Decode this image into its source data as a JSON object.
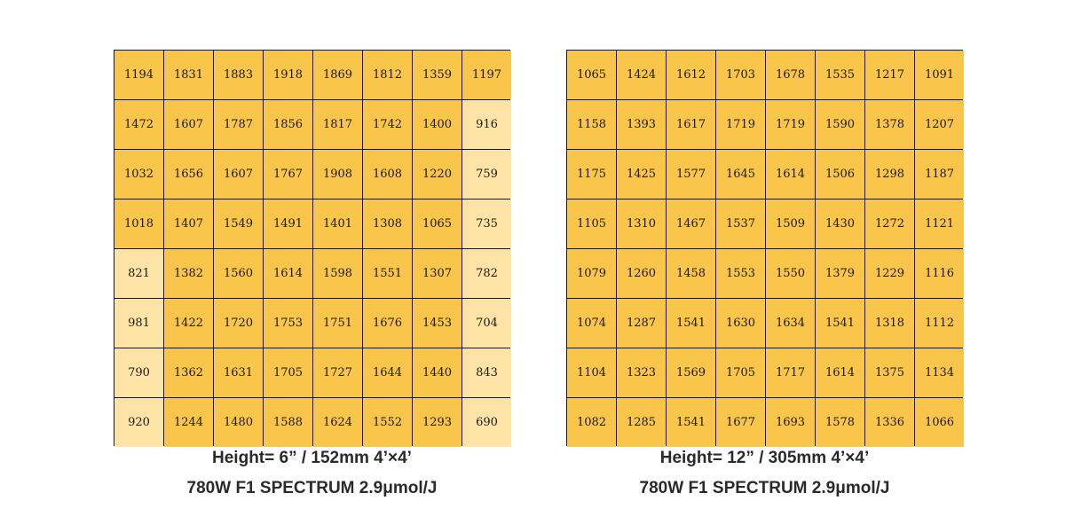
{
  "colors": {
    "high": "#f9c54b",
    "low": "#fde4a6",
    "grid_line": "#1a1a1a",
    "text": "#1a1a1a"
  },
  "chart_data": [
    {
      "type": "heatmap",
      "title": "",
      "caption_line1": "Height= 6” / 152mm  4’×4’",
      "caption_line2": "780W F1 SPECTRUM 2.9μmol/J",
      "rows": [
        [
          1194,
          1831,
          1883,
          1918,
          1869,
          1812,
          1359,
          1197
        ],
        [
          1472,
          1607,
          1787,
          1856,
          1817,
          1742,
          1400,
          916
        ],
        [
          1032,
          1656,
          1607,
          1767,
          1908,
          1608,
          1220,
          759
        ],
        [
          1018,
          1407,
          1549,
          1491,
          1401,
          1308,
          1065,
          735
        ],
        [
          821,
          1382,
          1560,
          1614,
          1598,
          1551,
          1307,
          782
        ],
        [
          981,
          1422,
          1720,
          1753,
          1751,
          1676,
          1453,
          704
        ],
        [
          790,
          1362,
          1631,
          1705,
          1727,
          1644,
          1440,
          843
        ],
        [
          920,
          1244,
          1480,
          1588,
          1624,
          1552,
          1293,
          690
        ]
      ],
      "light_cells": [
        [
          1,
          7
        ],
        [
          2,
          7
        ],
        [
          3,
          7
        ],
        [
          4,
          0
        ],
        [
          4,
          7
        ],
        [
          5,
          0
        ],
        [
          5,
          7
        ],
        [
          6,
          0
        ],
        [
          6,
          7
        ],
        [
          7,
          0
        ],
        [
          7,
          7
        ]
      ]
    },
    {
      "type": "heatmap",
      "title": "",
      "caption_line1": "Height= 12” / 305mm  4’×4’",
      "caption_line2": "780W F1 SPECTRUM 2.9μmol/J",
      "rows": [
        [
          1065,
          1424,
          1612,
          1703,
          1678,
          1535,
          1217,
          1091
        ],
        [
          1158,
          1393,
          1617,
          1719,
          1719,
          1590,
          1378,
          1207
        ],
        [
          1175,
          1425,
          1577,
          1645,
          1614,
          1506,
          1298,
          1187
        ],
        [
          1105,
          1310,
          1467,
          1537,
          1509,
          1430,
          1272,
          1121
        ],
        [
          1079,
          1260,
          1458,
          1553,
          1550,
          1379,
          1229,
          1116
        ],
        [
          1074,
          1287,
          1541,
          1630,
          1634,
          1541,
          1318,
          1112
        ],
        [
          1104,
          1323,
          1569,
          1705,
          1717,
          1614,
          1375,
          1134
        ],
        [
          1082,
          1285,
          1541,
          1677,
          1693,
          1578,
          1336,
          1066
        ]
      ],
      "light_cells": []
    }
  ]
}
